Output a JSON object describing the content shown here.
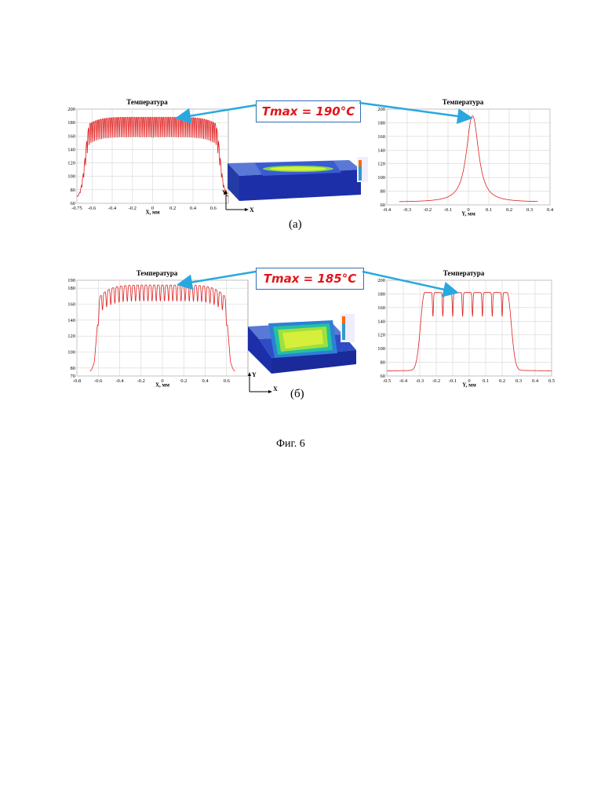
{
  "panel_a": {
    "caption": "(а)",
    "tmax": "Tmax = 190°C",
    "axis_x": "X",
    "axis_y": "Y"
  },
  "panel_b": {
    "caption": "(б)",
    "tmax": "Tmax = 185°C",
    "axis_x": "X",
    "axis_y": "Y"
  },
  "figure_caption": "Фиг. 6",
  "colors": {
    "curve": "#e02020",
    "arrow": "#29a8e0",
    "tmax_border": "#2e6fb5",
    "tmax_text": "#e0161b"
  },
  "chart_data": [
    {
      "id": "a-x",
      "type": "line",
      "title": "Температура",
      "xlabel": "X, мм",
      "ylabel": "",
      "xlim": [
        -0.75,
        0.75
      ],
      "ylim": [
        60,
        200
      ],
      "xticks": [
        -0.75,
        -0.6,
        -0.4,
        -0.2,
        0,
        0.2,
        0.4,
        0.6
      ],
      "xtick_labels": [
        "-0.75",
        "-0.6",
        "-0.4",
        "-0.2",
        "0",
        "0.2",
        "0.4",
        "0.6"
      ],
      "yticks": [
        60,
        80,
        100,
        120,
        140,
        160,
        180,
        200
      ],
      "ytick_labels": [
        "60",
        "80",
        "100",
        "120",
        "140",
        "160",
        "180",
        "200"
      ],
      "grid": true,
      "profile": {
        "kind": "oscillating-plateau",
        "edge_left": -0.62,
        "edge_right": 0.62,
        "plateau_min": 165,
        "plateau_max": 188,
        "base": 68,
        "peaks": 70,
        "dip_depth": 30,
        "edge_width": 0.12
      }
    },
    {
      "id": "a-y",
      "type": "line",
      "title": "Температура",
      "xlabel": "Y, мм",
      "ylabel": "",
      "xlim": [
        -0.4,
        0.4
      ],
      "ylim": [
        60,
        200
      ],
      "xticks": [
        -0.4,
        -0.3,
        -0.2,
        -0.1,
        0,
        0.1,
        0.2,
        0.3,
        0.4
      ],
      "xtick_labels": [
        "-0.4",
        "-0.3",
        "-0.2",
        "-0.1",
        "0",
        "0.1",
        "0.2",
        "0.3",
        "0.4"
      ],
      "yticks": [
        60,
        80,
        100,
        120,
        140,
        160,
        180,
        200
      ],
      "ytick_labels": [
        "60",
        "80",
        "100",
        "120",
        "140",
        "160",
        "180",
        "200"
      ],
      "grid": true,
      "profile": {
        "kind": "single-peak",
        "center": 0.02,
        "width": 0.035,
        "peak": 190,
        "base": 64,
        "x_start": -0.34,
        "x_end": 0.34
      }
    },
    {
      "id": "b-x",
      "type": "line",
      "title": "Температура",
      "xlabel": "X, мм",
      "ylabel": "",
      "xlim": [
        -0.8,
        0.8
      ],
      "ylim": [
        70,
        190
      ],
      "xticks": [
        -0.8,
        -0.6,
        -0.4,
        -0.2,
        0,
        0.2,
        0.4,
        0.6
      ],
      "xtick_labels": [
        "-0.8",
        "-0.6",
        "-0.4",
        "-0.2",
        "0",
        "0.2",
        "0.4",
        "0.6"
      ],
      "yticks": [
        70,
        80,
        100,
        120,
        140,
        160,
        180,
        190
      ],
      "ytick_labels": [
        "70",
        "80",
        "100",
        "120",
        "140",
        "160",
        "180",
        "190"
      ],
      "grid": true,
      "profile": {
        "kind": "oscillating-plateau",
        "edge_left": -0.58,
        "edge_right": 0.58,
        "plateau_min": 150,
        "plateau_max": 184,
        "base": 76,
        "peaks": 30,
        "dip_depth": 20,
        "edge_width": 0.08,
        "x_start": -0.68,
        "x_end": 0.68
      }
    },
    {
      "id": "b-y",
      "type": "line",
      "title": "Температура",
      "xlabel": "Y, мм",
      "ylabel": "",
      "xlim": [
        -0.5,
        0.5
      ],
      "ylim": [
        60,
        200
      ],
      "xticks": [
        -0.5,
        -0.4,
        -0.3,
        -0.2,
        -0.1,
        0,
        0.1,
        0.2,
        0.3,
        0.4,
        0.5
      ],
      "xtick_labels": [
        "-0.5",
        "-0.4",
        "-0.3",
        "-0.2",
        "-0.1",
        "0",
        "0.1",
        "0.2",
        "0.3",
        "0.4",
        "0.5"
      ],
      "yticks": [
        60,
        80,
        100,
        120,
        140,
        160,
        180,
        200
      ],
      "ytick_labels": [
        "60",
        "80",
        "100",
        "120",
        "140",
        "160",
        "180",
        "200"
      ],
      "grid": true,
      "profile": {
        "kind": "comb-plateau",
        "edge_left": -0.27,
        "edge_right": 0.23,
        "plateau": 182,
        "base": 66,
        "dips": [
          -0.22,
          -0.16,
          -0.1,
          -0.04,
          0.02,
          0.08,
          0.14,
          0.2
        ],
        "dip_depth": 35,
        "x_start": -0.5,
        "x_end": 0.5
      }
    }
  ]
}
